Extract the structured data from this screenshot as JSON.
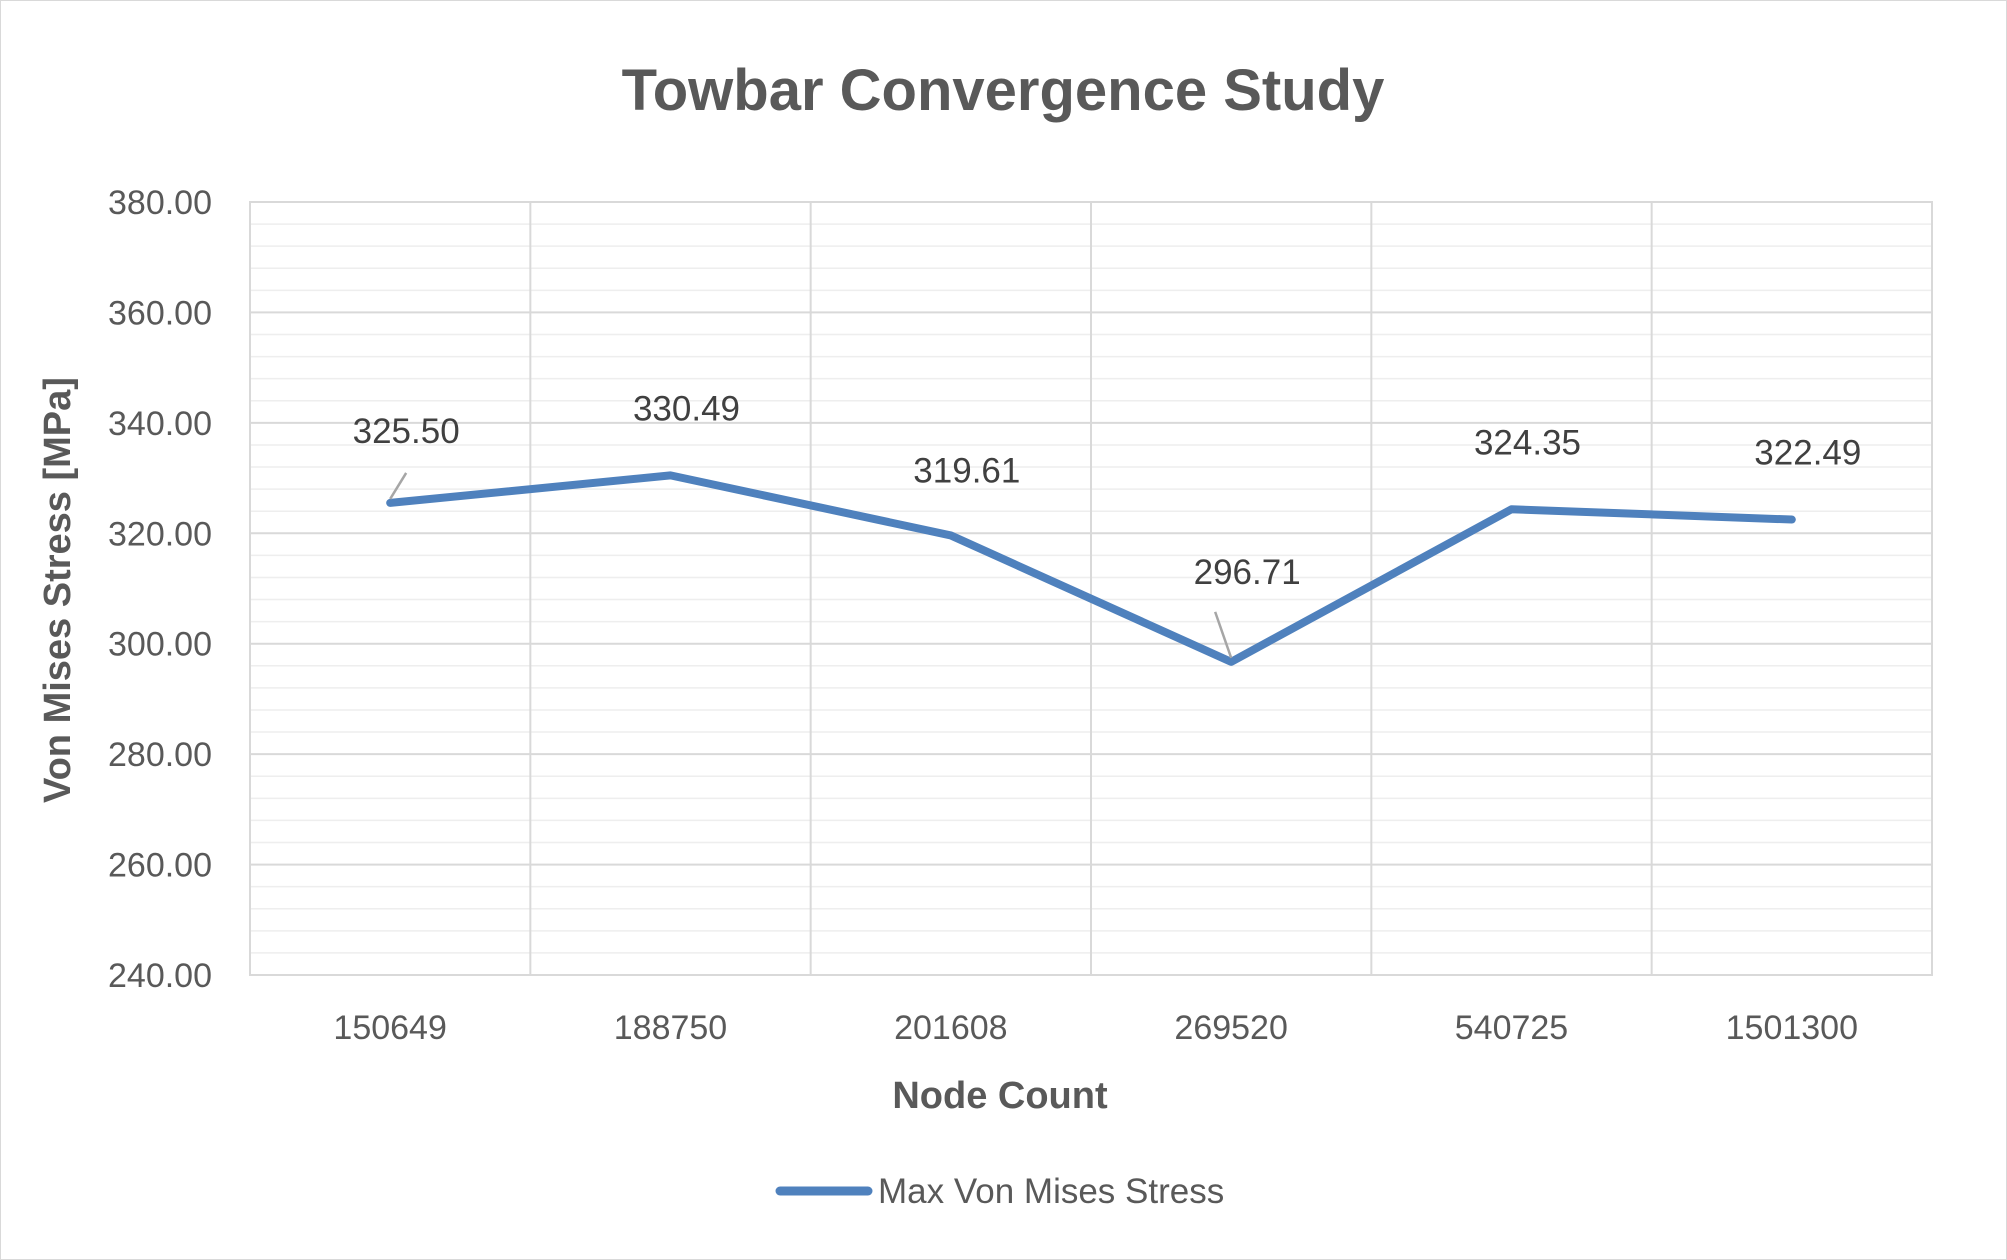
{
  "chart_data": {
    "type": "line",
    "title": "Towbar Convergence Study",
    "xlabel": "Node Count",
    "ylabel": "Von Mises Stress [MPa]",
    "categories": [
      "150649",
      "188750",
      "201608",
      "269520",
      "540725",
      "1501300"
    ],
    "series": [
      {
        "name": "Max Von Mises Stress",
        "values": [
          325.5,
          330.49,
          319.61,
          296.71,
          324.35,
          322.49
        ],
        "labels": [
          "325.50",
          "330.49",
          "319.61",
          "296.71",
          "324.35",
          "322.49"
        ]
      }
    ],
    "ylim": [
      240,
      380
    ],
    "y_ticks": [
      "380.00",
      "360.00",
      "340.00",
      "320.00",
      "300.00",
      "280.00",
      "260.00",
      "240.00"
    ],
    "y_tick_values": [
      380,
      360,
      340,
      320,
      300,
      280,
      260,
      240
    ],
    "y_minor_step": 4,
    "grid": true,
    "legend_position": "bottom",
    "colors": {
      "series": "#4f81bd",
      "grid_major": "#d9d9d9",
      "grid_minor": "#eeeeee",
      "text": "#595959"
    }
  }
}
